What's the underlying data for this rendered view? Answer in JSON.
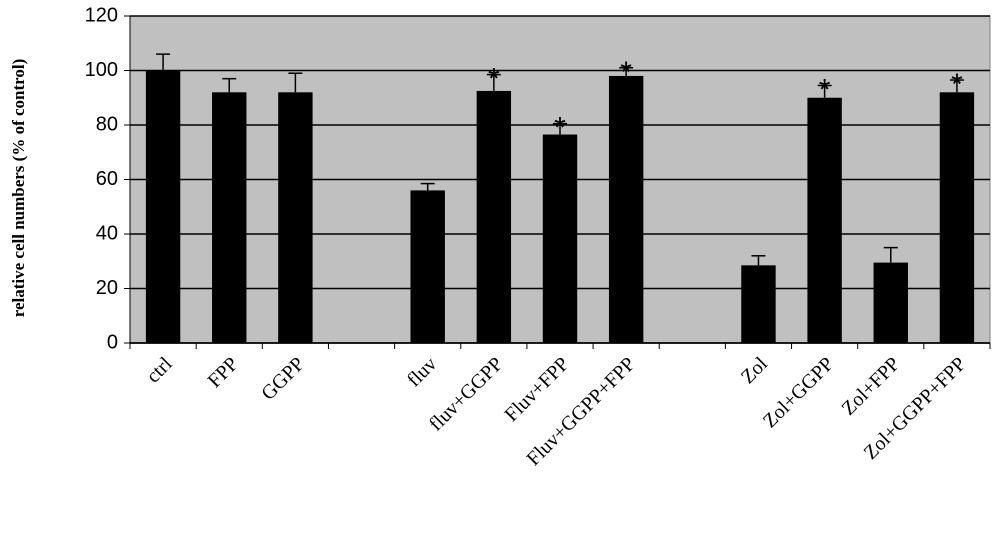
{
  "chart_data": {
    "type": "bar",
    "y_label": "relative cell numbers (% of control)",
    "categories": [
      "ctrl",
      "FPP",
      "GGPP",
      null,
      "fluv",
      "fluv+GGPP",
      "Fluv+FPP",
      "Fluv+GGPP+FPP",
      null,
      "Zol",
      "Zol+GGPP",
      "Zol+FPP",
      "Zol+GGPP+FPP"
    ],
    "values": [
      100,
      92,
      92,
      null,
      56,
      92.5,
      76.5,
      98,
      null,
      28.5,
      90,
      29.5,
      92
    ],
    "errors": [
      6,
      5,
      7,
      null,
      2.5,
      6,
      4,
      3,
      null,
      3.5,
      4.5,
      5.5,
      4.5
    ],
    "annotations": [
      {
        "text": "*",
        "category": "fluv+GGPP"
      },
      {
        "text": "*",
        "category": "Fluv+FPP"
      },
      {
        "text": "*",
        "category": "Fluv+GGPP+FPP"
      },
      {
        "text": "*",
        "category": "Zol+GGPP"
      },
      {
        "text": "*",
        "category": "Zol+GGPP+FPP"
      }
    ],
    "color": "#000000",
    "plot_background": "#c0c0c0",
    "ylim": [
      0,
      120
    ],
    "yticks": [
      0,
      20,
      40,
      60,
      80,
      100,
      120
    ],
    "grid": true
  }
}
